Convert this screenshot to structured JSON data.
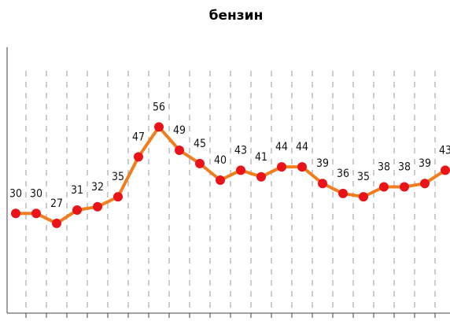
{
  "chart_data": {
    "type": "line",
    "title": "бензин",
    "categories": [
      null,
      null,
      null,
      null,
      null,
      null,
      null,
      null,
      null,
      null,
      null,
      null,
      null,
      null,
      null,
      null,
      null,
      null,
      null,
      null,
      null,
      null
    ],
    "series": [
      {
        "name": null,
        "color": "#f07d1e",
        "marker_color": "#e8141a",
        "values": [
          30,
          30,
          27,
          31,
          32,
          35,
          47,
          56,
          49,
          45,
          40,
          43,
          41,
          44,
          44,
          39,
          36,
          35,
          38,
          38,
          39,
          43
        ]
      }
    ],
    "ylim": [
      0,
      80
    ],
    "grid": true
  }
}
